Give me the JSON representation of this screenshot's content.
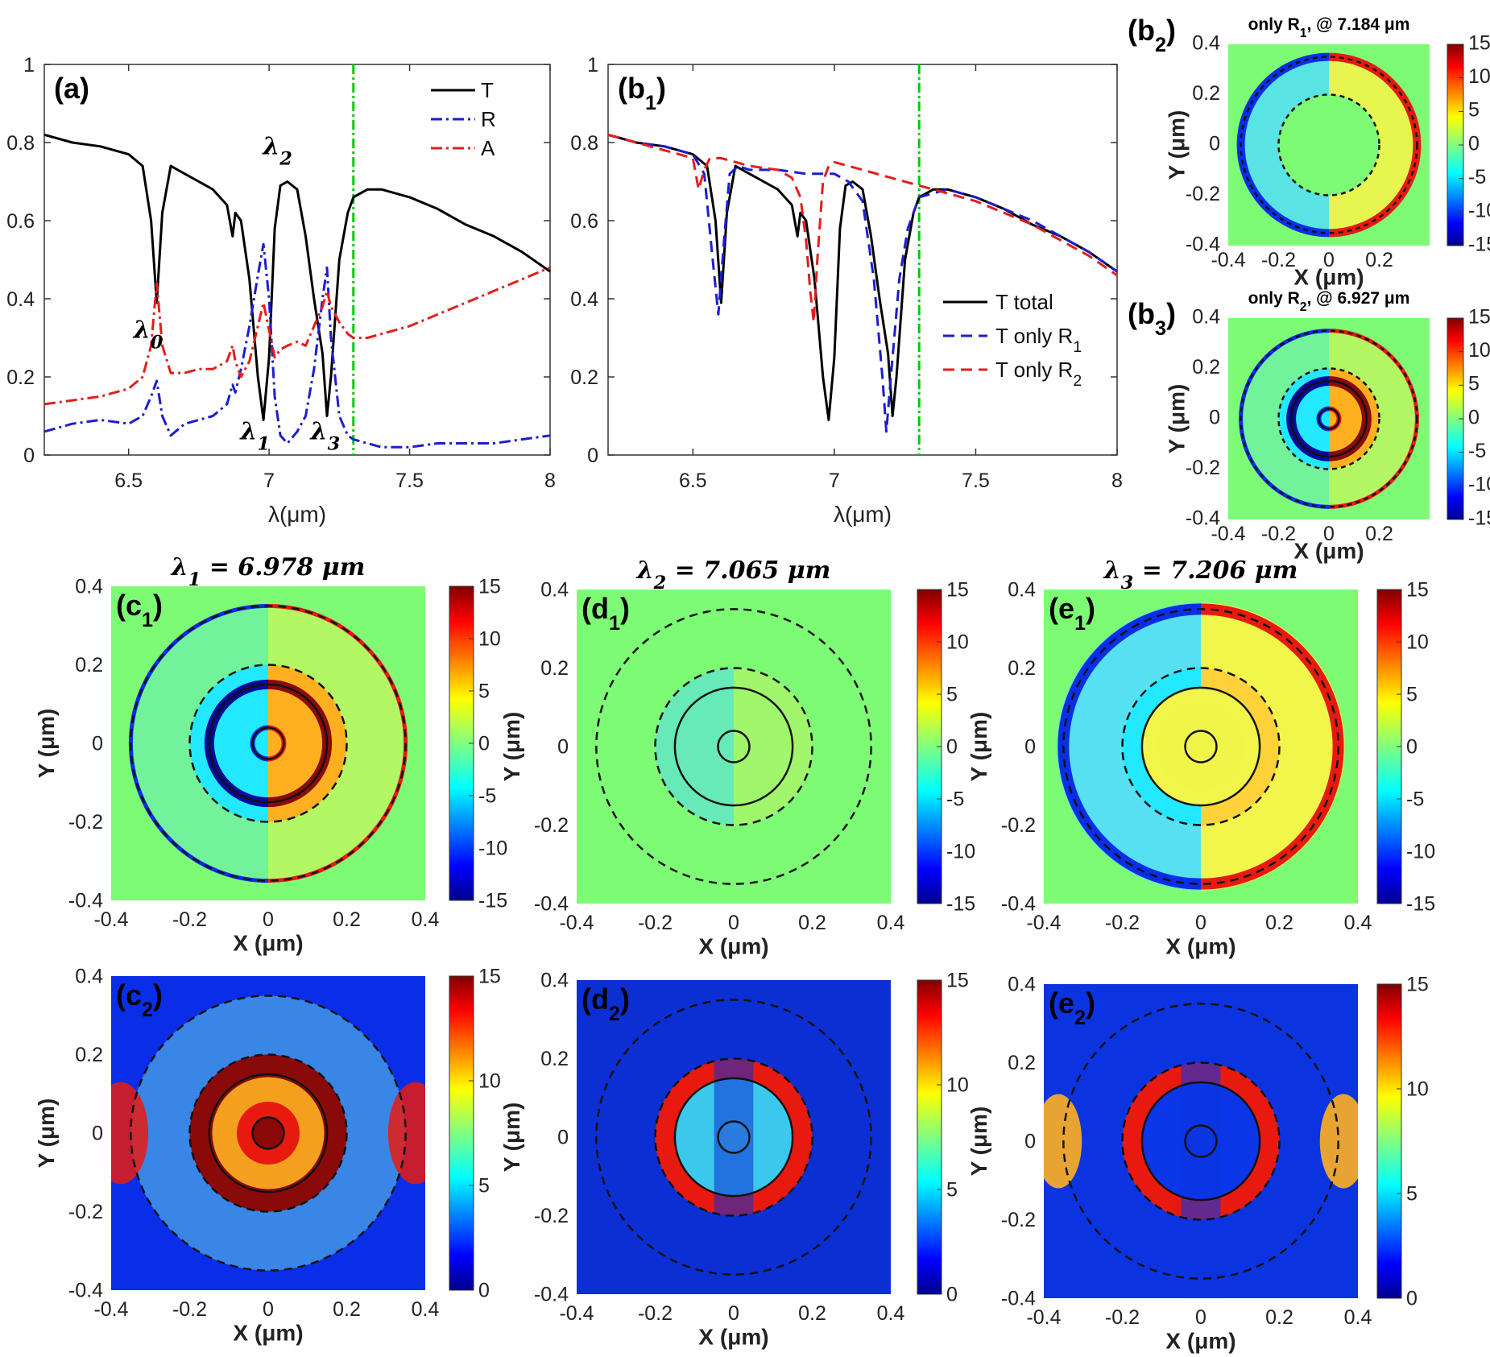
{
  "chart_data": [
    {
      "id": "a",
      "type": "line",
      "label": "(a)",
      "xlabel": "λ(μm)",
      "ylabel": "",
      "xlim": [
        6.2,
        8.0
      ],
      "ylim": [
        0,
        1
      ],
      "xticks": [
        6.5,
        7,
        7.5,
        8
      ],
      "xtick_labels": [
        "6.5",
        "7",
        "7.5",
        "8"
      ],
      "yticks": [
        0,
        0.2,
        0.4,
        0.6,
        0.8,
        1
      ],
      "ytick_labels": [
        "0",
        "0.2",
        "0.4",
        "0.6",
        "0.8",
        "1"
      ],
      "vline": {
        "x": 7.3,
        "color": "#00cc00"
      },
      "legend": [
        "T",
        "R",
        "A"
      ],
      "annotations": [
        {
          "text": "λ0",
          "x": 6.57,
          "y": 0.3
        },
        {
          "text": "λ1",
          "x": 6.95,
          "y": 0.04
        },
        {
          "text": "λ2",
          "x": 7.03,
          "y": 0.77
        },
        {
          "text": "λ3",
          "x": 7.2,
          "y": 0.04
        }
      ],
      "series": [
        {
          "name": "T",
          "color": "#000000",
          "dash": "solid",
          "x": [
            6.2,
            6.3,
            6.4,
            6.5,
            6.55,
            6.58,
            6.6,
            6.62,
            6.65,
            6.7,
            6.75,
            6.8,
            6.85,
            6.87,
            6.88,
            6.9,
            6.93,
            6.96,
            6.98,
            7.0,
            7.02,
            7.04,
            7.065,
            7.1,
            7.13,
            7.16,
            7.19,
            7.206,
            7.22,
            7.25,
            7.28,
            7.3,
            7.35,
            7.4,
            7.5,
            7.6,
            7.7,
            7.8,
            7.9,
            8.0
          ],
          "y": [
            0.82,
            0.8,
            0.79,
            0.77,
            0.74,
            0.6,
            0.39,
            0.62,
            0.74,
            0.72,
            0.7,
            0.68,
            0.64,
            0.56,
            0.62,
            0.6,
            0.45,
            0.2,
            0.09,
            0.25,
            0.58,
            0.69,
            0.7,
            0.68,
            0.56,
            0.4,
            0.26,
            0.1,
            0.2,
            0.5,
            0.62,
            0.66,
            0.68,
            0.68,
            0.66,
            0.63,
            0.59,
            0.56,
            0.52,
            0.47
          ]
        },
        {
          "name": "R",
          "color": "#1d1dcf",
          "dash": "dashdot",
          "x": [
            6.2,
            6.3,
            6.4,
            6.5,
            6.55,
            6.58,
            6.6,
            6.62,
            6.65,
            6.7,
            6.75,
            6.8,
            6.85,
            6.87,
            6.88,
            6.9,
            6.93,
            6.96,
            6.98,
            7.0,
            7.02,
            7.04,
            7.065,
            7.1,
            7.13,
            7.16,
            7.19,
            7.206,
            7.22,
            7.25,
            7.28,
            7.3,
            7.35,
            7.4,
            7.5,
            7.6,
            7.7,
            7.8,
            7.9,
            8.0
          ],
          "y": [
            0.06,
            0.08,
            0.09,
            0.08,
            0.1,
            0.15,
            0.19,
            0.1,
            0.05,
            0.08,
            0.09,
            0.1,
            0.13,
            0.18,
            0.16,
            0.22,
            0.33,
            0.46,
            0.54,
            0.4,
            0.15,
            0.05,
            0.03,
            0.06,
            0.1,
            0.22,
            0.4,
            0.48,
            0.3,
            0.1,
            0.05,
            0.04,
            0.03,
            0.02,
            0.02,
            0.03,
            0.03,
            0.03,
            0.04,
            0.05
          ]
        },
        {
          "name": "A",
          "color": "#e21e1e",
          "dash": "dashdot",
          "x": [
            6.2,
            6.3,
            6.4,
            6.5,
            6.55,
            6.58,
            6.6,
            6.62,
            6.65,
            6.7,
            6.75,
            6.8,
            6.85,
            6.87,
            6.88,
            6.9,
            6.93,
            6.96,
            6.98,
            7.0,
            7.02,
            7.04,
            7.065,
            7.1,
            7.13,
            7.16,
            7.19,
            7.206,
            7.22,
            7.25,
            7.28,
            7.3,
            7.35,
            7.4,
            7.5,
            7.6,
            7.7,
            7.8,
            7.9,
            8.0
          ],
          "y": [
            0.13,
            0.14,
            0.15,
            0.17,
            0.2,
            0.28,
            0.44,
            0.28,
            0.21,
            0.21,
            0.22,
            0.22,
            0.24,
            0.28,
            0.24,
            0.2,
            0.24,
            0.33,
            0.39,
            0.32,
            0.25,
            0.27,
            0.28,
            0.29,
            0.28,
            0.33,
            0.38,
            0.42,
            0.38,
            0.34,
            0.31,
            0.3,
            0.3,
            0.31,
            0.33,
            0.36,
            0.39,
            0.42,
            0.45,
            0.48
          ]
        }
      ]
    },
    {
      "id": "b1",
      "type": "line",
      "label": "(b1)",
      "xlabel": "λ(μm)",
      "ylabel": "",
      "xlim": [
        6.2,
        8.0
      ],
      "ylim": [
        0,
        1
      ],
      "xticks": [
        6.5,
        7,
        7.5,
        8
      ],
      "xtick_labels": [
        "6.5",
        "7",
        "7.5",
        "8"
      ],
      "yticks": [
        0,
        0.2,
        0.4,
        0.6,
        0.8,
        1
      ],
      "ytick_labels": [
        "0",
        "0.2",
        "0.4",
        "0.6",
        "0.8",
        "1"
      ],
      "vline": {
        "x": 7.3,
        "color": "#00cc00"
      },
      "legend": [
        "T total",
        "T only R1",
        "T only R2"
      ],
      "series": [
        {
          "name": "T total",
          "color": "#000000",
          "dash": "solid",
          "x": [
            6.2,
            6.3,
            6.4,
            6.5,
            6.55,
            6.58,
            6.6,
            6.62,
            6.65,
            6.7,
            6.75,
            6.8,
            6.85,
            6.87,
            6.88,
            6.9,
            6.93,
            6.96,
            6.98,
            7.0,
            7.02,
            7.04,
            7.065,
            7.1,
            7.13,
            7.16,
            7.19,
            7.206,
            7.22,
            7.25,
            7.28,
            7.3,
            7.35,
            7.4,
            7.5,
            7.6,
            7.7,
            7.8,
            7.9,
            8.0
          ],
          "y": [
            0.82,
            0.8,
            0.79,
            0.77,
            0.74,
            0.6,
            0.39,
            0.62,
            0.74,
            0.72,
            0.7,
            0.68,
            0.64,
            0.56,
            0.62,
            0.6,
            0.45,
            0.2,
            0.09,
            0.25,
            0.58,
            0.69,
            0.7,
            0.68,
            0.56,
            0.4,
            0.26,
            0.1,
            0.2,
            0.5,
            0.62,
            0.66,
            0.68,
            0.68,
            0.66,
            0.63,
            0.59,
            0.56,
            0.52,
            0.47
          ]
        },
        {
          "name": "T only R1",
          "color": "#1d1dcf",
          "dash": "dash",
          "x": [
            6.2,
            6.3,
            6.4,
            6.5,
            6.54,
            6.57,
            6.59,
            6.61,
            6.63,
            6.66,
            6.7,
            6.8,
            6.9,
            7.0,
            7.05,
            7.1,
            7.14,
            7.17,
            7.184,
            7.2,
            7.23,
            7.26,
            7.3,
            7.4,
            7.5,
            7.6,
            7.7,
            7.8,
            7.9,
            8.0
          ],
          "y": [
            0.82,
            0.8,
            0.79,
            0.77,
            0.72,
            0.5,
            0.36,
            0.55,
            0.72,
            0.74,
            0.73,
            0.73,
            0.72,
            0.72,
            0.7,
            0.65,
            0.45,
            0.2,
            0.06,
            0.2,
            0.45,
            0.58,
            0.66,
            0.68,
            0.66,
            0.63,
            0.6,
            0.56,
            0.52,
            0.47
          ]
        },
        {
          "name": "T only R2",
          "color": "#e21e1e",
          "dash": "dash",
          "x": [
            6.2,
            6.3,
            6.4,
            6.5,
            6.52,
            6.54,
            6.56,
            6.6,
            6.7,
            6.8,
            6.85,
            6.88,
            6.9,
            6.915,
            6.927,
            6.94,
            6.96,
            6.98,
            7.0,
            7.05,
            7.1,
            7.2,
            7.3,
            7.4,
            7.5,
            7.6,
            7.7,
            7.8,
            7.9,
            8.0
          ],
          "y": [
            0.82,
            0.8,
            0.78,
            0.76,
            0.68,
            0.73,
            0.76,
            0.76,
            0.74,
            0.73,
            0.71,
            0.66,
            0.55,
            0.42,
            0.34,
            0.5,
            0.7,
            0.74,
            0.75,
            0.74,
            0.73,
            0.71,
            0.69,
            0.67,
            0.65,
            0.62,
            0.59,
            0.55,
            0.51,
            0.46
          ]
        }
      ]
    },
    {
      "id": "b2",
      "type": "heatmap",
      "label": "(b2)",
      "title": "only R1, @ 7.184 μm",
      "xlabel": "X (μm)",
      "ylabel": "Y (μm)",
      "xlim": [
        -0.4,
        0.4
      ],
      "ylim": [
        -0.4,
        0.4
      ],
      "xticks": [
        "-0.4",
        "-0.2",
        "0",
        "0.2"
      ],
      "yticks": [
        "-0.4",
        "-0.2",
        "0",
        "0.2",
        "0.4"
      ],
      "clim": [
        -15,
        15
      ],
      "cticks": [
        "-15",
        "-10",
        "-5",
        "0",
        "5",
        "10",
        "15"
      ],
      "colormap": "jet",
      "pattern": "dipole-outer"
    },
    {
      "id": "b3",
      "type": "heatmap",
      "label": "(b3)",
      "title": "only R2, @ 6.927 μm",
      "xlabel": "X (μm)",
      "ylabel": "Y (μm)",
      "xlim": [
        -0.4,
        0.4
      ],
      "ylim": [
        -0.4,
        0.4
      ],
      "xticks": [
        "-0.4",
        "-0.2",
        "0",
        "0.2"
      ],
      "yticks": [
        "-0.4",
        "-0.2",
        "0",
        "0.2",
        "0.4"
      ],
      "clim": [
        -15,
        15
      ],
      "cticks": [
        "-15",
        "-10",
        "-5",
        "0",
        "5",
        "10",
        "15"
      ],
      "colormap": "jet",
      "pattern": "dipole-inner"
    },
    {
      "id": "c1",
      "type": "heatmap",
      "label": "(c1)",
      "title": "λ1 = 6.978 μm",
      "xlabel": "X (μm)",
      "ylabel": "Y (μm)",
      "xlim": [
        -0.4,
        0.4
      ],
      "ylim": [
        -0.4,
        0.4
      ],
      "xticks": [
        "-0.4",
        "-0.2",
        "0",
        "0.2",
        "0.4"
      ],
      "yticks": [
        "-0.4",
        "-0.2",
        "0",
        "0.2",
        "0.4"
      ],
      "clim": [
        -15,
        15
      ],
      "cticks": [
        "-15",
        "-10",
        "-5",
        "0",
        "5",
        "10",
        "15"
      ],
      "colormap": "jet",
      "pattern": "dipole-inner"
    },
    {
      "id": "d1",
      "type": "heatmap",
      "label": "(d1)",
      "title": "λ2 = 7.065 μm",
      "xlabel": "X (μm)",
      "ylabel": "Y (μm)",
      "xlim": [
        -0.4,
        0.4
      ],
      "ylim": [
        -0.4,
        0.4
      ],
      "xticks": [
        "-0.4",
        "-0.2",
        "0",
        "0.2",
        "0.4"
      ],
      "yticks": [
        "-0.4",
        "-0.2",
        "0",
        "0.2",
        "0.4"
      ],
      "clim": [
        -15,
        15
      ],
      "cticks": [
        "-15",
        "-10",
        "-5",
        "0",
        "5",
        "10",
        "15"
      ],
      "colormap": "jet",
      "pattern": "dipole-weak"
    },
    {
      "id": "e1",
      "type": "heatmap",
      "label": "(e1)",
      "title": "λ3 = 7.206 μm",
      "xlabel": "X (μm)",
      "ylabel": "Y (μm)",
      "xlim": [
        -0.4,
        0.4
      ],
      "ylim": [
        -0.4,
        0.4
      ],
      "xticks": [
        "-0.4",
        "-0.2",
        "0",
        "0.2",
        "0.4"
      ],
      "yticks": [
        "-0.4",
        "-0.2",
        "0",
        "0.2",
        "0.4"
      ],
      "clim": [
        -15,
        15
      ],
      "cticks": [
        "-15",
        "-10",
        "-5",
        "0",
        "5",
        "10",
        "15"
      ],
      "colormap": "jet",
      "pattern": "dipole-gap"
    },
    {
      "id": "c2",
      "type": "heatmap",
      "label": "(c2)",
      "title": "",
      "xlabel": "X (μm)",
      "ylabel": "Y (μm)",
      "xlim": [
        -0.4,
        0.4
      ],
      "ylim": [
        -0.4,
        0.4
      ],
      "xticks": [
        "-0.4",
        "-0.2",
        "0",
        "0.2",
        "0.4"
      ],
      "yticks": [
        "-0.4",
        "-0.2",
        "0",
        "0.2",
        "0.4"
      ],
      "clim": [
        0,
        15
      ],
      "cticks": [
        "0",
        "5",
        "10",
        "15"
      ],
      "colormap": "jet",
      "pattern": "mag-c"
    },
    {
      "id": "d2",
      "type": "heatmap",
      "label": "(d2)",
      "title": "",
      "xlabel": "X (μm)",
      "ylabel": "Y (μm)",
      "xlim": [
        -0.4,
        0.4
      ],
      "ylim": [
        -0.4,
        0.4
      ],
      "xticks": [
        "-0.4",
        "-0.2",
        "0",
        "0.2",
        "0.4"
      ],
      "yticks": [
        "-0.4",
        "-0.2",
        "0",
        "0.2",
        "0.4"
      ],
      "clim": [
        0,
        15
      ],
      "cticks": [
        "0",
        "5",
        "10",
        "15"
      ],
      "colormap": "jet",
      "pattern": "mag-d"
    },
    {
      "id": "e2",
      "type": "heatmap",
      "label": "(e2)",
      "title": "",
      "xlabel": "X (μm)",
      "ylabel": "Y (μm)",
      "xlim": [
        -0.4,
        0.4
      ],
      "ylim": [
        -0.4,
        0.4
      ],
      "xticks": [
        "-0.4",
        "-0.2",
        "0",
        "0.2",
        "0.4"
      ],
      "yticks": [
        "-0.4",
        "-0.2",
        "0",
        "0.2",
        "0.4"
      ],
      "clim": [
        0,
        15
      ],
      "cticks": [
        "0",
        "5",
        "10",
        "15"
      ],
      "colormap": "jet",
      "pattern": "mag-e"
    }
  ]
}
